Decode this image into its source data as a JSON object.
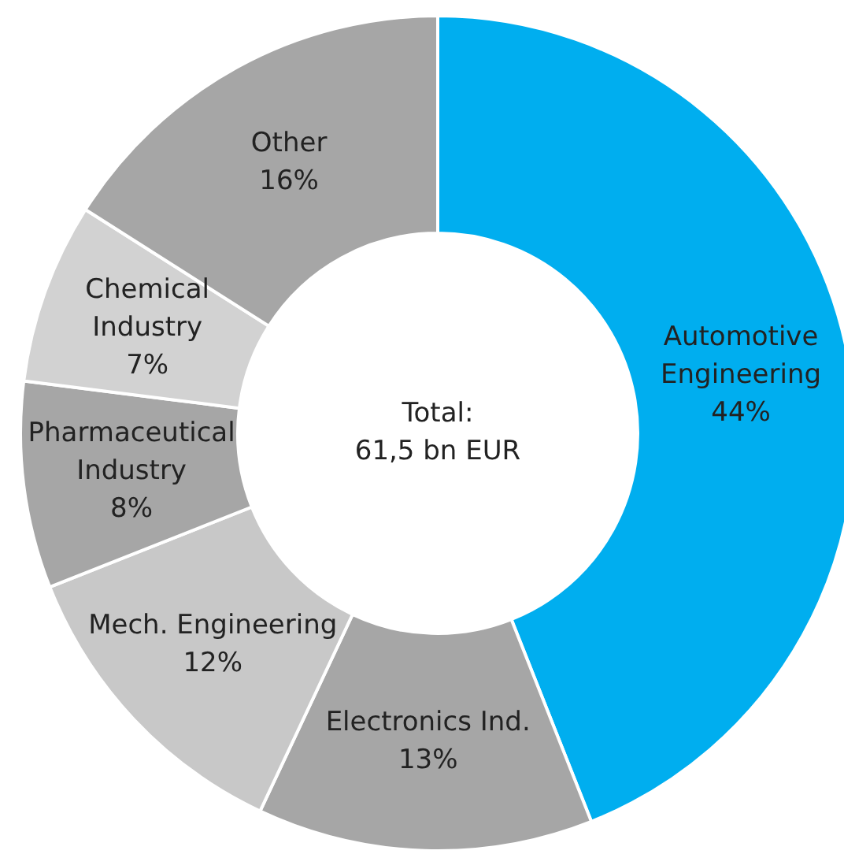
{
  "chart_data": {
    "type": "donut",
    "categories": [
      "Automotive\nEngineering",
      "Electronics Ind.",
      "Mech. Engineering",
      "Pharmaceutical\nIndustry",
      "Chemical\nIndustry",
      "Other"
    ],
    "values": [
      44,
      13,
      12,
      8,
      7,
      16
    ],
    "value_labels": [
      "44%",
      "13%",
      "12%",
      "8%",
      "7%",
      "16%"
    ],
    "colors": [
      "#00aeef",
      "#a6a6a6",
      "#c8c8c8",
      "#a6a6a6",
      "#d2d2d2",
      "#a6a6a6"
    ],
    "annotations": [
      "Total:",
      "61,5 bn EUR"
    ],
    "legend": false
  }
}
